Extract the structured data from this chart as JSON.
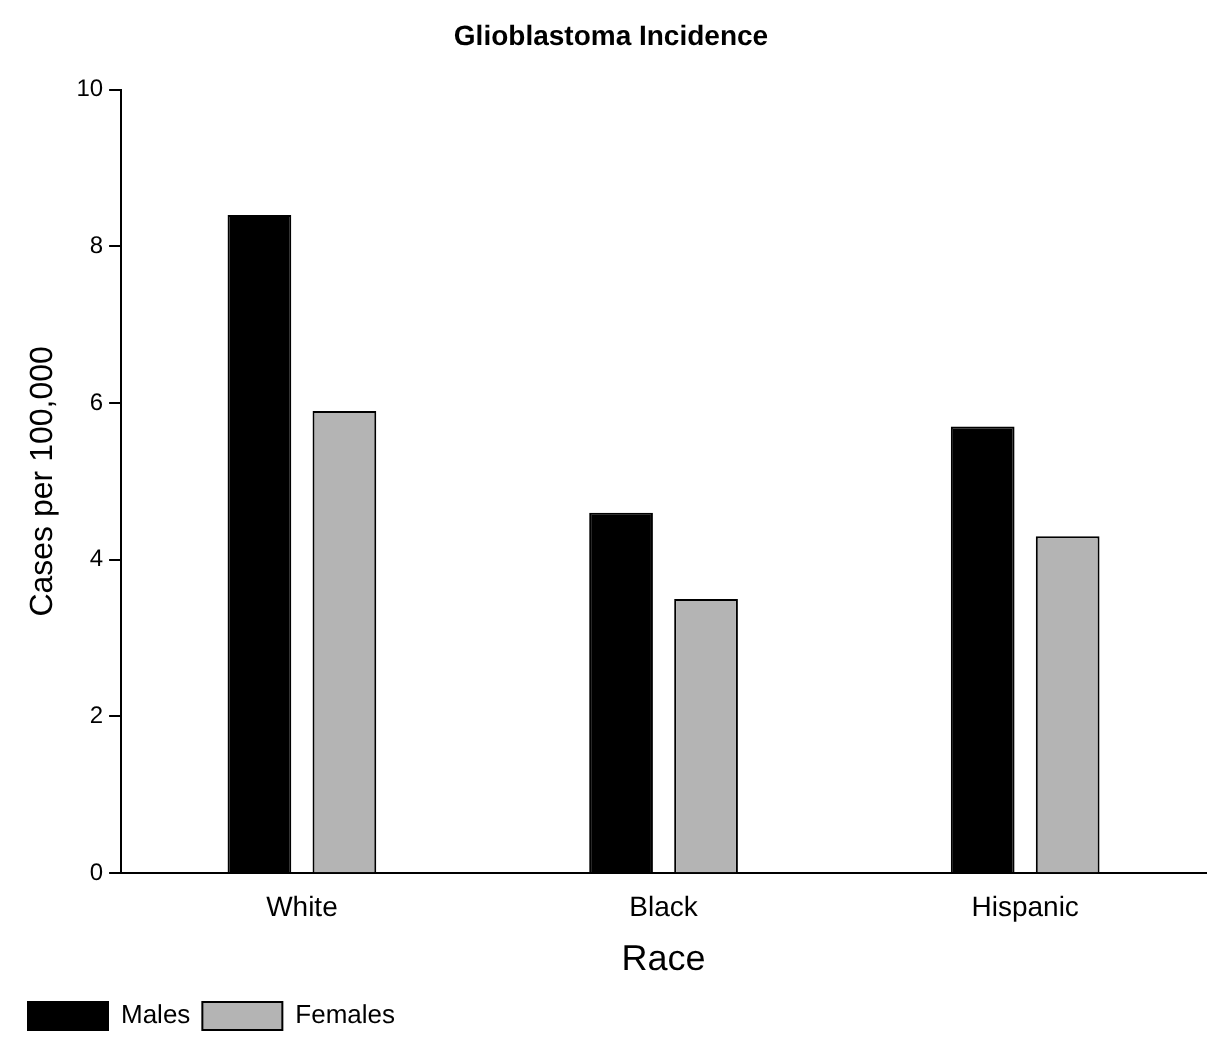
{
  "chart_data": {
    "type": "bar",
    "title": "Glioblastoma Incidence",
    "xlabel": "Race",
    "ylabel": "Cases per 100,000",
    "categories": [
      "White",
      "Black",
      "Hispanic"
    ],
    "series": [
      {
        "name": "Males",
        "color": "#000000",
        "values": [
          8.4,
          4.6,
          5.7
        ]
      },
      {
        "name": "Females",
        "color": "#b4b4b4",
        "values": [
          5.9,
          3.5,
          4.3
        ]
      }
    ],
    "ylim": [
      0,
      10
    ],
    "yticks": [
      0,
      2,
      4,
      6,
      8,
      10
    ],
    "grid": false,
    "legend": "bottom left"
  }
}
